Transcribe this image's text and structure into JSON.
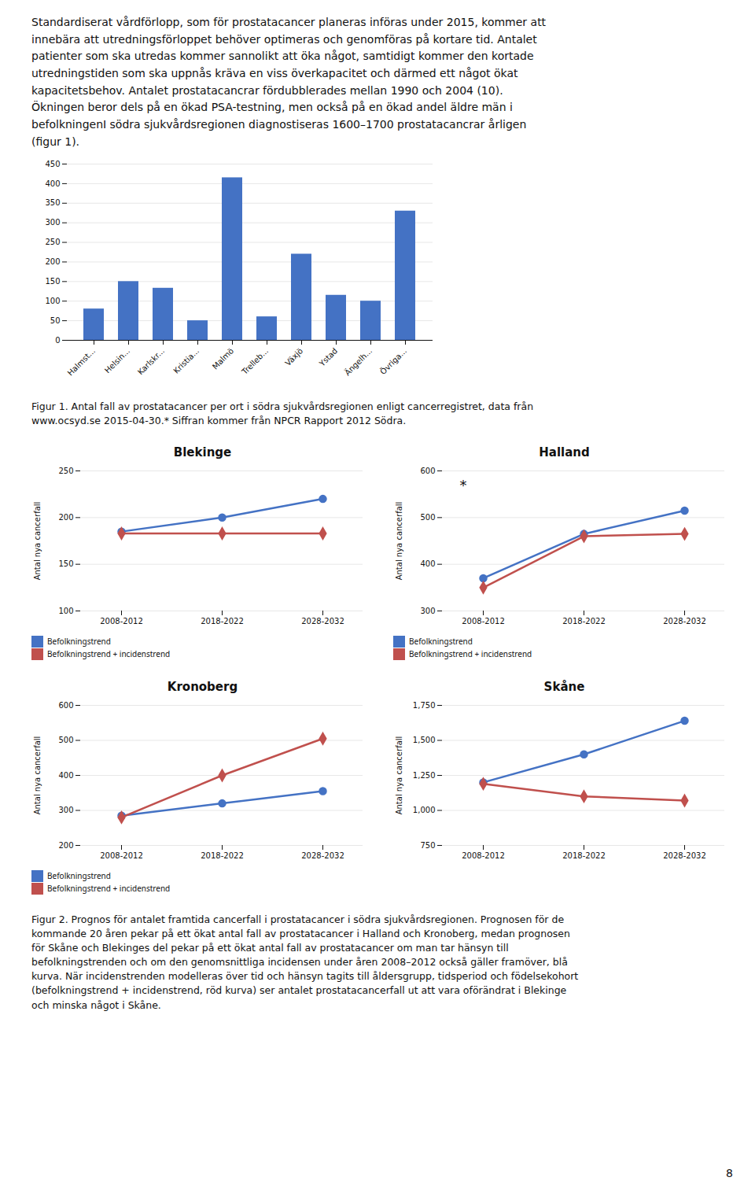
{
  "text": {
    "intro": [
      "Standardiserat vårdförlopp, som för prostatacancer planeras införas under 2015, kommer att",
      "innebära att utredningsförloppet behöver optimeras och genomföras på kortare tid. Antalet",
      "patienter som ska utredas kommer sannolikt att öka något, samtidigt kommer den kortade",
      "utredningstiden som ska uppnås kräva en viss överkapacitet och därmed ett något ökat",
      "kapacitetsbehov. Antalet prostatacancrar fördubblerades mellan 1990 och 2004 (10).",
      "Ökningen beror dels på en ökad PSA-testning, men också på en ökad andel äldre män i",
      "befolkningenI södra sjukvårdsregionen diagnostiseras 1600–1700 prostatacancrar årligen",
      "(figur 1)."
    ],
    "figure1_caption": [
      "Figur 1. Antal fall av prostatacancer per ort i södra sjukvårdsregionen enligt cancerregistret, data från",
      "www.ocsyd.se 2015-04-30.* Siffran kommer från NPCR Rapport 2012 Södra."
    ],
    "figure2_caption": [
      "Figur 2. Prognos för antalet framtida cancerfall i prostatacancer i södra sjukvårdsregionen. Prognosen för de",
      "kommande 20 åren pekar på ett ökat antal fall av prostatacancer i Halland och Kronoberg, medan prognosen",
      "för Skåne och Blekinges del pekar på ett ökat antal fall av prostatacancer om man tar hänsyn till",
      "befolkningstrenden och om den genomsnittliga incidensen under åren 2008–2012 också gäller framöver, blå",
      "kurva. När incidenstrenden modelleras över tid och hänsyn tagits till åldersgrupp, tidsperiod och födelsekohort",
      "(befolkningstrend + incidenstrend, röd kurva) ser antalet prostatacancerfall ut att vara oförändrat i Blekinge",
      "och minska något i Skåne."
    ],
    "page_number": "8"
  },
  "chart_data": [
    {
      "type": "bar",
      "categories": [
        "Halmst...",
        "Helsin...",
        "Karlskr...",
        "Kristia...",
        "Malmö",
        "Trelleb...",
        "Växjö",
        "Ystad",
        "Ängelh...",
        "Övriga..."
      ],
      "values": [
        80,
        150,
        133,
        50,
        415,
        60,
        220,
        115,
        100,
        330
      ],
      "color": "#4472C4",
      "ylim": [
        0,
        450
      ],
      "yticks": [
        0,
        50,
        100,
        150,
        200,
        250,
        300,
        350,
        400,
        450
      ],
      "grid": true
    },
    {
      "type": "line",
      "title": "Blekinge",
      "ylabel": "Antal nya cancerfall",
      "categories": [
        "2008-2012",
        "2018-2022",
        "2028-2032"
      ],
      "series": [
        {
          "name": "Befolkningstrend",
          "color": "#4472C4",
          "marker": "circle",
          "values": [
            185,
            200,
            220
          ]
        },
        {
          "name": "Befolkningstrend + incidenstrend",
          "color": "#C0504D",
          "marker": "diamond",
          "values": [
            183,
            183,
            183
          ]
        }
      ],
      "ylim": [
        100,
        250
      ],
      "yticks": [
        100,
        150,
        200,
        250
      ],
      "grid": true,
      "legend": "below"
    },
    {
      "type": "line",
      "title": "Halland",
      "ylabel": "Antal nya cancerfall",
      "categories": [
        "2008-2012",
        "2018-2022",
        "2028-2032"
      ],
      "series": [
        {
          "name": "Befolkningstrend",
          "color": "#4472C4",
          "marker": "circle",
          "values": [
            370,
            465,
            515
          ]
        },
        {
          "name": "Befolkningstrend + incidenstrend",
          "color": "#C0504D",
          "marker": "diamond",
          "values": [
            350,
            460,
            465
          ]
        }
      ],
      "ylim": [
        300,
        600
      ],
      "yticks": [
        300,
        400,
        500,
        600
      ],
      "grid": true,
      "legend": "below",
      "annotation": "*"
    },
    {
      "type": "line",
      "title": "Kronoberg",
      "ylabel": "Antal nya cancerfall",
      "categories": [
        "2008-2012",
        "2018-2022",
        "2028-2032"
      ],
      "series": [
        {
          "name": "Befolkningstrend",
          "color": "#4472C4",
          "marker": "circle",
          "values": [
            285,
            320,
            355
          ]
        },
        {
          "name": "Befolkningstrend + incidenstrend",
          "color": "#C0504D",
          "marker": "diamond",
          "values": [
            280,
            400,
            505
          ]
        }
      ],
      "ylim": [
        200,
        600
      ],
      "yticks": [
        200,
        300,
        400,
        500,
        600
      ],
      "grid": true,
      "legend": "below"
    },
    {
      "type": "line",
      "title": "Skåne",
      "ylabel": "Antal nya cancerfall",
      "categories": [
        "2008-2012",
        "2018-2022",
        "2028-2032"
      ],
      "series": [
        {
          "name": "Befolkningstrend",
          "color": "#4472C4",
          "marker": "circle",
          "values": [
            1200,
            1400,
            1640
          ]
        },
        {
          "name": "Befolkningstrend + incidenstrend",
          "color": "#C0504D",
          "marker": "diamond",
          "values": [
            1190,
            1100,
            1070
          ]
        }
      ],
      "ylim": [
        750,
        1750
      ],
      "yticks": [
        750,
        1000,
        1250,
        1500,
        1750
      ],
      "grid": true
    }
  ]
}
